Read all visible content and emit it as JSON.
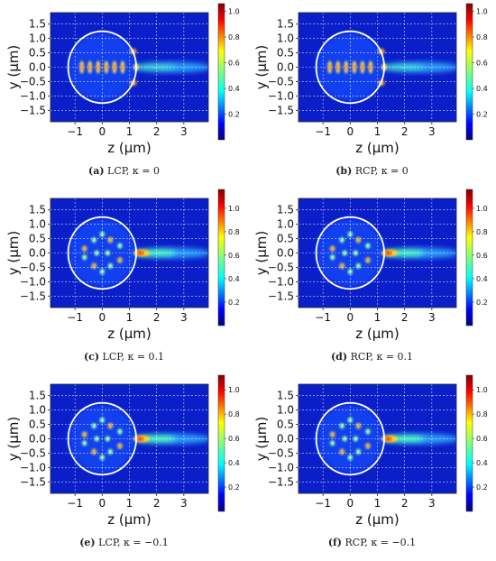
{
  "chart_data": [
    {
      "type": "heatmap",
      "caption": {
        "label": "(a)",
        "text": "LCP, κ = 0"
      },
      "xlabel": "z (μm)",
      "ylabel": "y (μm)",
      "xlim": [
        -1.9,
        3.9
      ],
      "ylim": [
        -1.9,
        1.9
      ],
      "xticks": [
        "−1",
        "0",
        "1",
        "2",
        "3"
      ],
      "xtick_values": [
        -1,
        0,
        1,
        2,
        3
      ],
      "yticks": [
        "1.5",
        "1.0",
        "0.5",
        "0.0",
        "−0.5",
        "−1.0",
        "−1.5"
      ],
      "ytick_values": [
        1.5,
        1.0,
        0.5,
        0.0,
        -0.5,
        -1.0,
        -1.5
      ],
      "colorbar": {
        "ticks": [
          "1.0",
          "0.8",
          "0.6",
          "0.4",
          "0.2"
        ],
        "tick_values": [
          1.0,
          0.8,
          0.6,
          0.4,
          0.2
        ],
        "range": [
          0,
          1.06
        ]
      },
      "particle_radius": 1.25,
      "grid": true,
      "peak_field": 0.9
    },
    {
      "type": "heatmap",
      "caption": {
        "label": "(b)",
        "text": "RCP, κ = 0"
      },
      "xlabel": "z (μm)",
      "ylabel": "y (μm)",
      "xlim": [
        -1.9,
        3.9
      ],
      "ylim": [
        -1.9,
        1.9
      ],
      "xticks": [
        "−1",
        "0",
        "1",
        "2",
        "3"
      ],
      "xtick_values": [
        -1,
        0,
        1,
        2,
        3
      ],
      "yticks": [
        "1.5",
        "1.0",
        "0.5",
        "0.0",
        "−0.5",
        "−1.0",
        "−1.5"
      ],
      "ytick_values": [
        1.5,
        1.0,
        0.5,
        0.0,
        -0.5,
        -1.0,
        -1.5
      ],
      "colorbar": {
        "ticks": [
          "1.0",
          "0.8",
          "0.6",
          "0.4",
          "0.2"
        ],
        "tick_values": [
          1.0,
          0.8,
          0.6,
          0.4,
          0.2
        ],
        "range": [
          0,
          1.06
        ]
      },
      "particle_radius": 1.25,
      "grid": true,
      "peak_field": 0.9
    },
    {
      "type": "heatmap",
      "caption": {
        "label": "(c)",
        "text": "LCP, κ = 0.1"
      },
      "xlabel": "z (μm)",
      "ylabel": "y (μm)",
      "xlim": [
        -1.9,
        3.9
      ],
      "ylim": [
        -1.9,
        1.9
      ],
      "xticks": [
        "−1",
        "0",
        "1",
        "2",
        "3"
      ],
      "xtick_values": [
        -1,
        0,
        1,
        2,
        3
      ],
      "yticks": [
        "1.5",
        "1.0",
        "0.5",
        "0.0",
        "−0.5",
        "−1.0",
        "−1.5"
      ],
      "ytick_values": [
        1.5,
        1.0,
        0.5,
        0.0,
        -0.5,
        -1.0,
        -1.5
      ],
      "colorbar": {
        "ticks": [
          "1.0",
          "0.8",
          "0.6",
          "0.4",
          "0.2"
        ],
        "tick_values": [
          1.0,
          0.8,
          0.6,
          0.4,
          0.2
        ],
        "range": [
          0,
          1.16
        ]
      },
      "particle_radius": 1.25,
      "grid": true,
      "peak_field": 1.1
    },
    {
      "type": "heatmap",
      "caption": {
        "label": "(d)",
        "text": "RCP, κ = 0.1"
      },
      "xlabel": "z (μm)",
      "ylabel": "y (μm)",
      "xlim": [
        -1.9,
        3.9
      ],
      "ylim": [
        -1.9,
        1.9
      ],
      "xticks": [
        "−1",
        "0",
        "1",
        "2",
        "3"
      ],
      "xtick_values": [
        -1,
        0,
        1,
        2,
        3
      ],
      "yticks": [
        "1.5",
        "1.0",
        "0.5",
        "0.0",
        "−0.5",
        "−1.0",
        "−1.5"
      ],
      "ytick_values": [
        1.5,
        1.0,
        0.5,
        0.0,
        -0.5,
        -1.0,
        -1.5
      ],
      "colorbar": {
        "ticks": [
          "1.0",
          "0.8",
          "0.6",
          "0.4",
          "0.2"
        ],
        "tick_values": [
          1.0,
          0.8,
          0.6,
          0.4,
          0.2
        ],
        "range": [
          0,
          1.16
        ]
      },
      "particle_radius": 1.25,
      "grid": true,
      "peak_field": 1.1
    },
    {
      "type": "heatmap",
      "caption": {
        "label": "(e)",
        "text": "LCP, κ = −0.1"
      },
      "xlabel": "z (μm)",
      "ylabel": "y (μm)",
      "xlim": [
        -1.9,
        3.9
      ],
      "ylim": [
        -1.9,
        1.9
      ],
      "xticks": [
        "−1",
        "0",
        "1",
        "2",
        "3"
      ],
      "xtick_values": [
        -1,
        0,
        1,
        2,
        3
      ],
      "yticks": [
        "1.5",
        "1.0",
        "0.5",
        "0.0",
        "−0.5",
        "−1.0",
        "−1.5"
      ],
      "ytick_values": [
        1.5,
        1.0,
        0.5,
        0.0,
        -0.5,
        -1.0,
        -1.5
      ],
      "colorbar": {
        "ticks": [
          "1.0",
          "0.8",
          "0.6",
          "0.4",
          "0.2"
        ],
        "tick_values": [
          1.0,
          0.8,
          0.6,
          0.4,
          0.2
        ],
        "range": [
          0,
          1.12
        ]
      },
      "particle_radius": 1.25,
      "grid": true,
      "peak_field": 1.05
    },
    {
      "type": "heatmap",
      "caption": {
        "label": "(f)",
        "text": "RCP, κ = −0.1"
      },
      "xlabel": "z (μm)",
      "ylabel": "y (μm)",
      "xlim": [
        -1.9,
        3.9
      ],
      "ylim": [
        -1.9,
        1.9
      ],
      "xticks": [
        "−1",
        "0",
        "1",
        "2",
        "3"
      ],
      "xtick_values": [
        -1,
        0,
        1,
        2,
        3
      ],
      "yticks": [
        "1.5",
        "1.0",
        "0.5",
        "0.0",
        "−0.5",
        "−1.0",
        "−1.5"
      ],
      "ytick_values": [
        1.5,
        1.0,
        0.5,
        0.0,
        -0.5,
        -1.0,
        -1.5
      ],
      "colorbar": {
        "ticks": [
          "1.0",
          "0.8",
          "0.6",
          "0.4",
          "0.2"
        ],
        "tick_values": [
          1.0,
          0.8,
          0.6,
          0.4,
          0.2
        ],
        "range": [
          0,
          1.12
        ]
      },
      "particle_radius": 1.25,
      "grid": true,
      "peak_field": 1.05
    }
  ]
}
